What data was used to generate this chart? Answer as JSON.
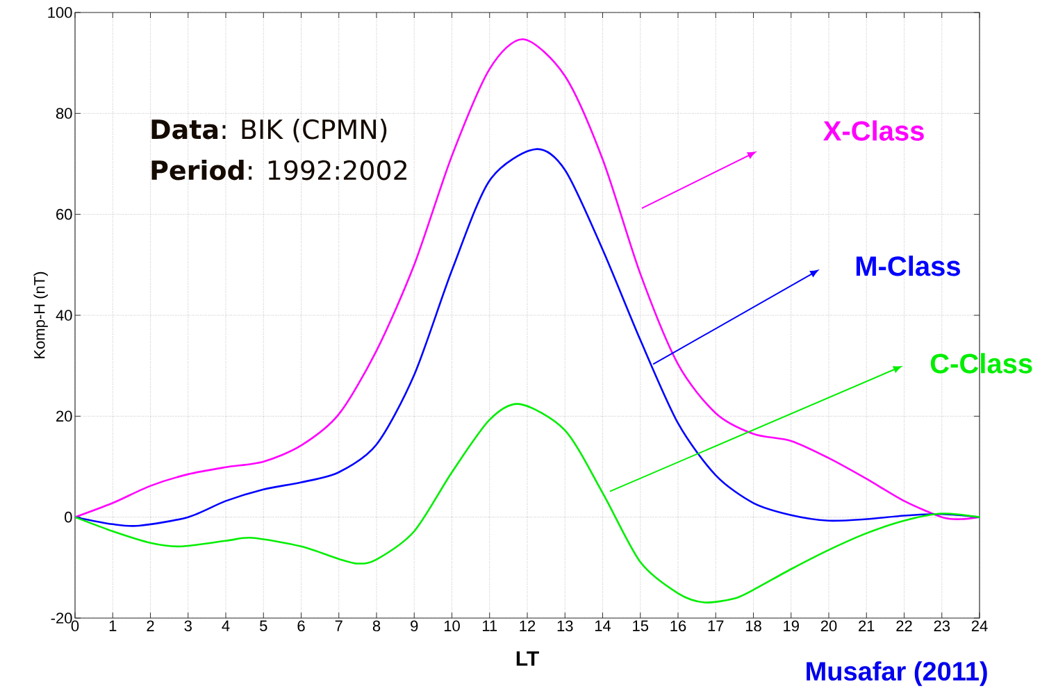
{
  "chart_data": {
    "type": "line",
    "xlabel": "LT",
    "ylabel": "Komp-H (nT)",
    "annotations": [
      "**Data**: BIK (CPMN)",
      "**Period**: 1992:2002",
      "Musafar (2011)"
    ],
    "xlim": [
      0,
      24
    ],
    "ylim": [
      -20,
      100
    ],
    "xticks": [
      0,
      1,
      2,
      3,
      4,
      5,
      6,
      7,
      8,
      9,
      10,
      11,
      12,
      13,
      14,
      15,
      16,
      17,
      18,
      19,
      20,
      21,
      22,
      23,
      24
    ],
    "yticks": [
      -20,
      0,
      20,
      40,
      60,
      80,
      100
    ],
    "grid": true,
    "legend": "right",
    "marker": "none",
    "line_style": "solid",
    "series": [
      {
        "name": "X-Class",
        "color": "#ff00ff",
        "x": [
          0,
          1,
          2,
          3,
          4,
          5,
          6,
          7,
          8,
          9,
          10,
          11,
          11.9,
          13,
          14,
          15,
          16,
          17,
          18,
          19,
          20,
          21,
          22,
          23,
          23.5,
          24
        ],
        "values": [
          0,
          2.8,
          6.2,
          8.5,
          9.9,
          11,
          14.2,
          20.4,
          33,
          50,
          71.6,
          88.8,
          94.7,
          87.4,
          70.9,
          48.2,
          30.3,
          20.6,
          16.5,
          15.1,
          11.7,
          7.6,
          3.2,
          0,
          -0.4,
          0
        ]
      },
      {
        "name": "M-Class",
        "color": "#0000ff",
        "x": [
          0,
          1,
          1.7,
          3,
          4,
          5,
          6,
          7,
          8,
          9,
          10,
          11,
          12.2,
          13,
          14,
          15,
          16,
          17,
          18,
          19,
          20,
          21,
          22,
          23,
          24
        ],
        "values": [
          0,
          -1.4,
          -1.7,
          0,
          3.2,
          5.5,
          6.9,
          8.9,
          14.4,
          28.2,
          48.9,
          66.7,
          72.9,
          68.8,
          53,
          35.1,
          18.6,
          8.3,
          2.8,
          0.4,
          -0.7,
          -0.4,
          0.3,
          0.6,
          0
        ]
      },
      {
        "name": "C-Class",
        "color": "#00ee00",
        "x": [
          0,
          1,
          2,
          2.8,
          4,
          4.7,
          6,
          7,
          7.5,
          8,
          9,
          10,
          11,
          11.8,
          13,
          14,
          15,
          16,
          16.7,
          17.5,
          18,
          19,
          20,
          21,
          22,
          23,
          24
        ],
        "values": [
          0,
          -2.8,
          -5.1,
          -5.8,
          -4.7,
          -4.1,
          -5.8,
          -8.3,
          -9.2,
          -8.4,
          -2.8,
          8.9,
          19.3,
          22.4,
          17.2,
          4.8,
          -8.9,
          -15.1,
          -16.9,
          -16.1,
          -14.4,
          -10.3,
          -6.5,
          -3.2,
          -0.7,
          0.7,
          0
        ]
      }
    ]
  }
}
